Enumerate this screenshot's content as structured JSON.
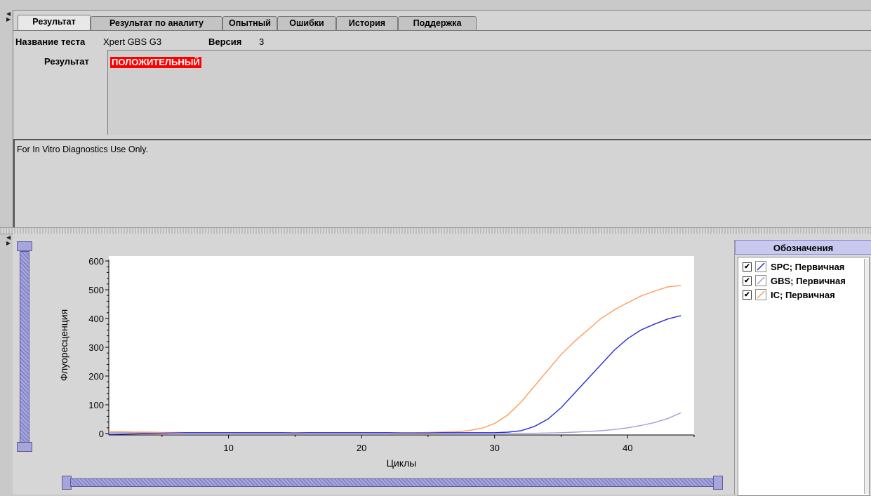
{
  "tabs": [
    "Результат",
    "Результат по аналиту",
    "Опытный",
    "Ошибки",
    "История",
    "Поддержка"
  ],
  "test": {
    "name_label": "Название теста",
    "name_value": "Xpert GBS G3",
    "version_label": "Версия",
    "version_value": "3",
    "result_label": "Результат",
    "result_value": "ПОЛОЖИТЕЛЬНЫЙ",
    "note": "For In Vitro Diagnostics Use Only."
  },
  "legend": {
    "title": "Обозначения",
    "items": [
      {
        "label": "SPC; Первичная",
        "checked": true,
        "color": "#2b2bd9"
      },
      {
        "label": "GBS; Первичная",
        "checked": true,
        "color": "#9f9fd6"
      },
      {
        "label": "IC; Первичная",
        "checked": true,
        "color": "#ff9a55"
      }
    ]
  },
  "chart_data": {
    "type": "line",
    "xlabel": "Циклы",
    "ylabel": "Флуоресценция",
    "xlim": [
      1,
      45
    ],
    "ylim": [
      0,
      600
    ],
    "xticks": [
      10,
      20,
      30,
      40
    ],
    "yticks": [
      0,
      100,
      200,
      300,
      400,
      500,
      600
    ],
    "x": [
      1,
      2,
      3,
      4,
      5,
      6,
      7,
      8,
      9,
      10,
      11,
      12,
      13,
      14,
      15,
      16,
      17,
      18,
      19,
      20,
      21,
      22,
      23,
      24,
      25,
      26,
      27,
      28,
      29,
      30,
      31,
      32,
      33,
      34,
      35,
      36,
      37,
      38,
      39,
      40,
      41,
      42,
      43,
      44
    ],
    "series": [
      {
        "name": "SPC; Первичная",
        "color": "#2b2bd9",
        "values": [
          -3,
          -2,
          -1,
          0,
          1,
          2,
          3,
          3,
          3,
          3,
          3,
          3,
          3,
          3,
          2,
          3,
          3,
          3,
          3,
          3,
          3,
          3,
          2,
          2,
          2,
          3,
          3,
          3,
          3,
          3,
          5,
          10,
          25,
          50,
          90,
          140,
          190,
          240,
          290,
          330,
          360,
          380,
          398,
          410
        ]
      },
      {
        "name": "GBS; Первичная",
        "color": "#9f9fd6",
        "values": [
          3,
          3,
          3,
          2,
          2,
          2,
          1,
          1,
          1,
          1,
          1,
          1,
          1,
          1,
          1,
          1,
          1,
          1,
          1,
          1,
          1,
          1,
          1,
          1,
          1,
          1,
          1,
          1,
          1,
          1,
          1,
          1,
          1,
          2,
          3,
          5,
          7,
          10,
          14,
          20,
          28,
          38,
          52,
          72
        ]
      },
      {
        "name": "IC; Первичная",
        "color": "#ff9a55",
        "values": [
          6,
          6,
          5,
          5,
          4,
          4,
          3,
          3,
          3,
          3,
          3,
          3,
          3,
          3,
          3,
          3,
          3,
          3,
          3,
          3,
          3,
          3,
          3,
          3,
          4,
          5,
          6,
          10,
          18,
          35,
          65,
          110,
          165,
          220,
          275,
          320,
          360,
          400,
          430,
          455,
          478,
          495,
          510,
          515
        ]
      }
    ]
  }
}
